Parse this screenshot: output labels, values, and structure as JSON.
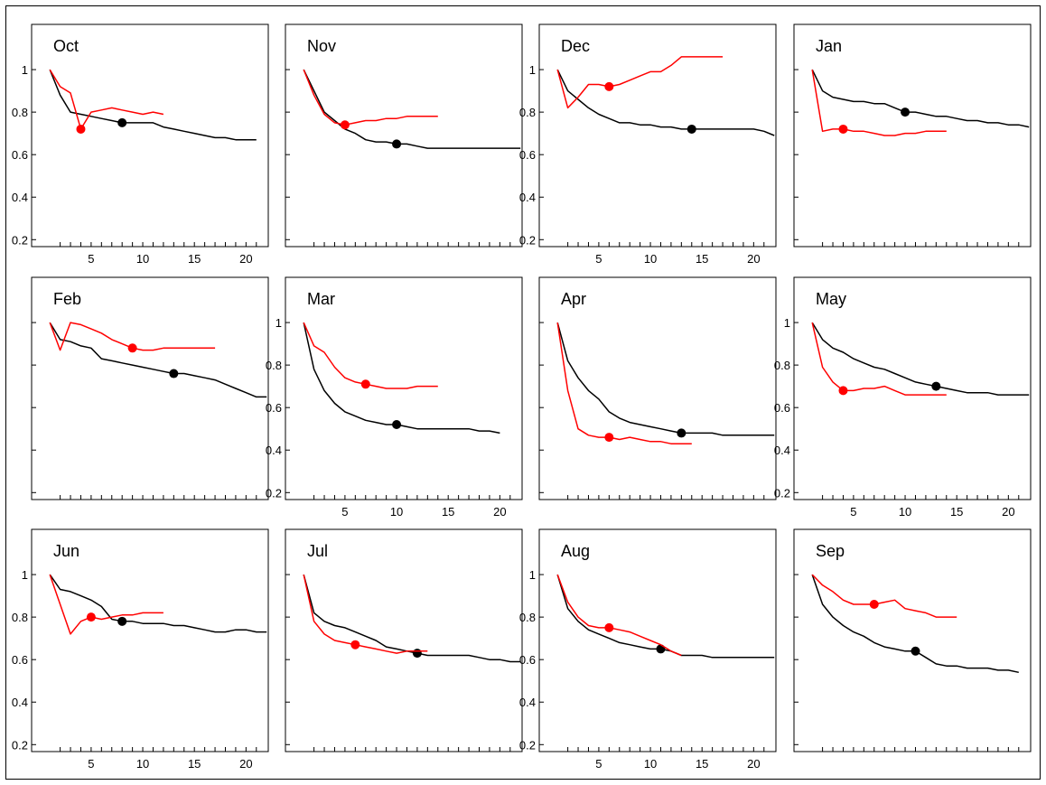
{
  "chart_data": {
    "type": "line",
    "axes": {
      "xlim": [
        0,
        22
      ],
      "ylim": [
        0.18,
        1.2
      ],
      "ytick_values": [
        0.2,
        0.4,
        0.6,
        0.8,
        1.0
      ],
      "ytick_labels": [
        "0.2",
        "0.4",
        "0.6",
        "0.8",
        "1"
      ],
      "xtick_values": [
        5,
        10,
        15,
        20
      ],
      "xtick_labels": [
        "5",
        "10",
        "15",
        "20"
      ],
      "x_minor_ticks": [
        2,
        3,
        4,
        5,
        6,
        7,
        8,
        9,
        10,
        11,
        12,
        13,
        14,
        15,
        16,
        17,
        18,
        19,
        20,
        21
      ],
      "grid": false
    },
    "series_colors": {
      "black": "#000000",
      "red": "#ff0000"
    },
    "panels": [
      {
        "title": "Oct",
        "show_y": true,
        "show_x": true,
        "black": {
          "x": [
            1,
            2,
            3,
            4,
            5,
            6,
            7,
            8,
            9,
            10,
            11,
            12,
            13,
            14,
            15,
            16,
            17,
            18,
            19,
            20,
            21
          ],
          "y": [
            1.0,
            0.88,
            0.8,
            0.79,
            0.78,
            0.77,
            0.76,
            0.75,
            0.75,
            0.75,
            0.75,
            0.73,
            0.72,
            0.71,
            0.7,
            0.69,
            0.68,
            0.68,
            0.67,
            0.67,
            0.67
          ],
          "marker": [
            8,
            0.75
          ]
        },
        "red": {
          "x": [
            1,
            2,
            3,
            4,
            5,
            6,
            7,
            8,
            9,
            10,
            11,
            12
          ],
          "y": [
            1.0,
            0.92,
            0.89,
            0.72,
            0.8,
            0.81,
            0.82,
            0.81,
            0.8,
            0.79,
            0.8,
            0.79
          ],
          "marker": [
            4,
            0.72
          ]
        }
      },
      {
        "title": "Nov",
        "show_y": false,
        "show_x": false,
        "black": {
          "x": [
            1,
            2,
            3,
            4,
            5,
            6,
            7,
            8,
            9,
            10,
            11,
            12,
            13,
            14,
            15,
            16,
            17,
            18,
            19,
            20,
            21,
            22
          ],
          "y": [
            1.0,
            0.9,
            0.8,
            0.76,
            0.72,
            0.7,
            0.67,
            0.66,
            0.66,
            0.65,
            0.65,
            0.64,
            0.63,
            0.63,
            0.63,
            0.63,
            0.63,
            0.63,
            0.63,
            0.63,
            0.63,
            0.63
          ],
          "marker": [
            10,
            0.65
          ]
        },
        "red": {
          "x": [
            1,
            2,
            3,
            4,
            5,
            6,
            7,
            8,
            9,
            10,
            11,
            12,
            13,
            14
          ],
          "y": [
            1.0,
            0.88,
            0.79,
            0.75,
            0.74,
            0.75,
            0.76,
            0.76,
            0.77,
            0.77,
            0.78,
            0.78,
            0.78,
            0.78
          ],
          "marker": [
            5,
            0.74
          ]
        }
      },
      {
        "title": "Dec",
        "show_y": true,
        "show_x": true,
        "black": {
          "x": [
            1,
            2,
            3,
            4,
            5,
            6,
            7,
            8,
            9,
            10,
            11,
            12,
            13,
            14,
            15,
            16,
            17,
            18,
            19,
            20,
            21,
            22
          ],
          "y": [
            1.0,
            0.9,
            0.86,
            0.82,
            0.79,
            0.77,
            0.75,
            0.75,
            0.74,
            0.74,
            0.73,
            0.73,
            0.72,
            0.72,
            0.72,
            0.72,
            0.72,
            0.72,
            0.72,
            0.72,
            0.71,
            0.69
          ],
          "marker": [
            14,
            0.72
          ]
        },
        "red": {
          "x": [
            1,
            2,
            3,
            4,
            5,
            6,
            7,
            8,
            9,
            10,
            11,
            12,
            13,
            14,
            15,
            16,
            17
          ],
          "y": [
            1.0,
            0.82,
            0.87,
            0.93,
            0.93,
            0.92,
            0.93,
            0.95,
            0.97,
            0.99,
            0.99,
            1.02,
            1.06,
            1.06,
            1.06,
            1.06,
            1.06
          ],
          "marker": [
            6,
            0.92
          ]
        }
      },
      {
        "title": "Jan",
        "show_y": false,
        "show_x": false,
        "black": {
          "x": [
            1,
            2,
            3,
            4,
            5,
            6,
            7,
            8,
            9,
            10,
            11,
            12,
            13,
            14,
            15,
            16,
            17,
            18,
            19,
            20,
            21,
            22
          ],
          "y": [
            1.0,
            0.9,
            0.87,
            0.86,
            0.85,
            0.85,
            0.84,
            0.84,
            0.82,
            0.8,
            0.8,
            0.79,
            0.78,
            0.78,
            0.77,
            0.76,
            0.76,
            0.75,
            0.75,
            0.74,
            0.74,
            0.73
          ],
          "marker": [
            10,
            0.8
          ]
        },
        "red": {
          "x": [
            1,
            2,
            3,
            4,
            5,
            6,
            7,
            8,
            9,
            10,
            11,
            12,
            13,
            14
          ],
          "y": [
            1.0,
            0.71,
            0.72,
            0.72,
            0.71,
            0.71,
            0.7,
            0.69,
            0.69,
            0.7,
            0.7,
            0.71,
            0.71,
            0.71
          ],
          "marker": [
            4,
            0.72
          ]
        }
      },
      {
        "title": "Feb",
        "show_y": false,
        "show_x": false,
        "black": {
          "x": [
            1,
            2,
            3,
            4,
            5,
            6,
            7,
            8,
            9,
            10,
            11,
            12,
            13,
            14,
            15,
            16,
            17,
            18,
            19,
            20,
            21,
            22
          ],
          "y": [
            1.0,
            0.92,
            0.91,
            0.89,
            0.88,
            0.83,
            0.82,
            0.81,
            0.8,
            0.79,
            0.78,
            0.77,
            0.76,
            0.76,
            0.75,
            0.74,
            0.73,
            0.71,
            0.69,
            0.67,
            0.65,
            0.65
          ],
          "marker": [
            13,
            0.76
          ]
        },
        "red": {
          "x": [
            1,
            2,
            3,
            4,
            5,
            6,
            7,
            8,
            9,
            10,
            11,
            12,
            13,
            14,
            15,
            16,
            17
          ],
          "y": [
            1.0,
            0.87,
            1.0,
            0.99,
            0.97,
            0.95,
            0.92,
            0.9,
            0.88,
            0.87,
            0.87,
            0.88,
            0.88,
            0.88,
            0.88,
            0.88,
            0.88
          ],
          "marker": [
            9,
            0.88
          ]
        }
      },
      {
        "title": "Mar",
        "show_y": true,
        "show_x": true,
        "black": {
          "x": [
            1,
            2,
            3,
            4,
            5,
            6,
            7,
            8,
            9,
            10,
            11,
            12,
            13,
            14,
            15,
            16,
            17,
            18,
            19,
            20
          ],
          "y": [
            1.0,
            0.78,
            0.68,
            0.62,
            0.58,
            0.56,
            0.54,
            0.53,
            0.52,
            0.52,
            0.51,
            0.5,
            0.5,
            0.5,
            0.5,
            0.5,
            0.5,
            0.49,
            0.49,
            0.48
          ],
          "marker": [
            10,
            0.52
          ]
        },
        "red": {
          "x": [
            1,
            2,
            3,
            4,
            5,
            6,
            7,
            8,
            9,
            10,
            11,
            12,
            13,
            14
          ],
          "y": [
            1.0,
            0.89,
            0.86,
            0.79,
            0.74,
            0.72,
            0.71,
            0.7,
            0.69,
            0.69,
            0.69,
            0.7,
            0.7,
            0.7
          ],
          "marker": [
            7,
            0.71
          ]
        }
      },
      {
        "title": "Apr",
        "show_y": false,
        "show_x": false,
        "black": {
          "x": [
            1,
            2,
            3,
            4,
            5,
            6,
            7,
            8,
            9,
            10,
            11,
            12,
            13,
            14,
            15,
            16,
            17,
            18,
            19,
            20,
            21,
            22
          ],
          "y": [
            1.0,
            0.82,
            0.74,
            0.68,
            0.64,
            0.58,
            0.55,
            0.53,
            0.52,
            0.51,
            0.5,
            0.49,
            0.48,
            0.48,
            0.48,
            0.48,
            0.47,
            0.47,
            0.47,
            0.47,
            0.47,
            0.47
          ],
          "marker": [
            13,
            0.48
          ]
        },
        "red": {
          "x": [
            1,
            2,
            3,
            4,
            5,
            6,
            7,
            8,
            9,
            10,
            11,
            12,
            13,
            14
          ],
          "y": [
            1.0,
            0.68,
            0.5,
            0.47,
            0.46,
            0.46,
            0.45,
            0.46,
            0.45,
            0.44,
            0.44,
            0.43,
            0.43,
            0.43
          ],
          "marker": [
            6,
            0.46
          ]
        }
      },
      {
        "title": "May",
        "show_y": true,
        "show_x": true,
        "black": {
          "x": [
            1,
            2,
            3,
            4,
            5,
            6,
            7,
            8,
            9,
            10,
            11,
            12,
            13,
            14,
            15,
            16,
            17,
            18,
            19,
            20,
            21,
            22
          ],
          "y": [
            1.0,
            0.92,
            0.88,
            0.86,
            0.83,
            0.81,
            0.79,
            0.78,
            0.76,
            0.74,
            0.72,
            0.71,
            0.7,
            0.69,
            0.68,
            0.67,
            0.67,
            0.67,
            0.66,
            0.66,
            0.66,
            0.66
          ],
          "marker": [
            13,
            0.7
          ]
        },
        "red": {
          "x": [
            1,
            2,
            3,
            4,
            5,
            6,
            7,
            8,
            9,
            10,
            11,
            12,
            13,
            14
          ],
          "y": [
            1.0,
            0.79,
            0.72,
            0.68,
            0.68,
            0.69,
            0.69,
            0.7,
            0.68,
            0.66,
            0.66,
            0.66,
            0.66,
            0.66
          ],
          "marker": [
            4,
            0.68
          ]
        }
      },
      {
        "title": "Jun",
        "show_y": true,
        "show_x": true,
        "black": {
          "x": [
            1,
            2,
            3,
            4,
            5,
            6,
            7,
            8,
            9,
            10,
            11,
            12,
            13,
            14,
            15,
            16,
            17,
            18,
            19,
            20,
            21,
            22
          ],
          "y": [
            1.0,
            0.93,
            0.92,
            0.9,
            0.88,
            0.85,
            0.79,
            0.78,
            0.78,
            0.77,
            0.77,
            0.77,
            0.76,
            0.76,
            0.75,
            0.74,
            0.73,
            0.73,
            0.74,
            0.74,
            0.73,
            0.73
          ],
          "marker": [
            8,
            0.78
          ]
        },
        "red": {
          "x": [
            1,
            2,
            3,
            4,
            5,
            6,
            7,
            8,
            9,
            10,
            11,
            12
          ],
          "y": [
            1.0,
            0.86,
            0.72,
            0.78,
            0.8,
            0.79,
            0.8,
            0.81,
            0.81,
            0.82,
            0.82,
            0.82
          ],
          "marker": [
            5,
            0.8
          ]
        }
      },
      {
        "title": "Jul",
        "show_y": false,
        "show_x": false,
        "black": {
          "x": [
            1,
            2,
            3,
            4,
            5,
            6,
            7,
            8,
            9,
            10,
            11,
            12,
            13,
            14,
            15,
            16,
            17,
            18,
            19,
            20,
            21,
            22
          ],
          "y": [
            1.0,
            0.82,
            0.78,
            0.76,
            0.75,
            0.73,
            0.71,
            0.69,
            0.66,
            0.65,
            0.64,
            0.63,
            0.62,
            0.62,
            0.62,
            0.62,
            0.62,
            0.61,
            0.6,
            0.6,
            0.59,
            0.59
          ],
          "marker": [
            12,
            0.63
          ]
        },
        "red": {
          "x": [
            1,
            2,
            3,
            4,
            5,
            6,
            7,
            8,
            9,
            10,
            11,
            12,
            13
          ],
          "y": [
            1.0,
            0.78,
            0.72,
            0.69,
            0.68,
            0.67,
            0.66,
            0.65,
            0.64,
            0.63,
            0.64,
            0.64,
            0.64
          ],
          "marker": [
            6,
            0.67
          ]
        }
      },
      {
        "title": "Aug",
        "show_y": true,
        "show_x": true,
        "black": {
          "x": [
            1,
            2,
            3,
            4,
            5,
            6,
            7,
            8,
            9,
            10,
            11,
            12,
            13,
            14,
            15,
            16,
            17,
            18,
            19,
            20,
            21,
            22
          ],
          "y": [
            1.0,
            0.84,
            0.78,
            0.74,
            0.72,
            0.7,
            0.68,
            0.67,
            0.66,
            0.65,
            0.65,
            0.64,
            0.62,
            0.62,
            0.62,
            0.61,
            0.61,
            0.61,
            0.61,
            0.61,
            0.61,
            0.61
          ],
          "marker": [
            11,
            0.65
          ]
        },
        "red": {
          "x": [
            1,
            2,
            3,
            4,
            5,
            6,
            7,
            8,
            9,
            10,
            11,
            12,
            13
          ],
          "y": [
            1.0,
            0.87,
            0.8,
            0.76,
            0.75,
            0.75,
            0.74,
            0.73,
            0.71,
            0.69,
            0.67,
            0.64,
            0.62
          ],
          "marker": [
            6,
            0.75
          ]
        }
      },
      {
        "title": "Sep",
        "show_y": false,
        "show_x": false,
        "black": {
          "x": [
            1,
            2,
            3,
            4,
            5,
            6,
            7,
            8,
            9,
            10,
            11,
            12,
            13,
            14,
            15,
            16,
            17,
            18,
            19,
            20,
            21
          ],
          "y": [
            1.0,
            0.86,
            0.8,
            0.76,
            0.73,
            0.71,
            0.68,
            0.66,
            0.65,
            0.64,
            0.64,
            0.61,
            0.58,
            0.57,
            0.57,
            0.56,
            0.56,
            0.56,
            0.55,
            0.55,
            0.54
          ],
          "marker": [
            11,
            0.64
          ]
        },
        "red": {
          "x": [
            1,
            2,
            3,
            4,
            5,
            6,
            7,
            8,
            9,
            10,
            11,
            12,
            13,
            14,
            15
          ],
          "y": [
            1.0,
            0.95,
            0.92,
            0.88,
            0.86,
            0.86,
            0.86,
            0.87,
            0.88,
            0.84,
            0.83,
            0.82,
            0.8,
            0.8,
            0.8
          ],
          "marker": [
            7,
            0.86
          ]
        }
      }
    ]
  }
}
